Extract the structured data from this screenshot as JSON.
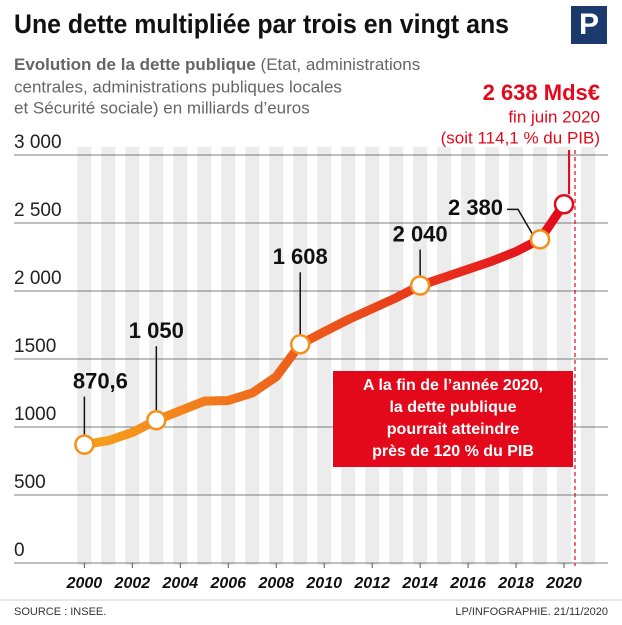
{
  "logo": "P",
  "chart_data": {
    "type": "line",
    "title": "Une dette multipliée par trois en vingt ans",
    "subtitle": {
      "lead": "Evolution de la dette publique",
      "lines": [
        "(Etat, administrations",
        "centrales, administrations publiques locales",
        "et Sécurité sociale) en milliards d’euros"
      ]
    },
    "x": [
      2000,
      2001,
      2002,
      2003,
      2004,
      2005,
      2006,
      2007,
      2008,
      2009,
      2010,
      2011,
      2012,
      2013,
      2014,
      2015,
      2016,
      2017,
      2018,
      2019,
      2020
    ],
    "values": [
      870.6,
      900,
      960,
      1050,
      1120,
      1190,
      1195,
      1250,
      1370,
      1608,
      1700,
      1790,
      1870,
      1950,
      2040,
      2100,
      2160,
      2220,
      2290,
      2380,
      2638
    ],
    "value_labels": [
      "870,6",
      null,
      null,
      "1 050",
      null,
      null,
      null,
      null,
      null,
      "1 608",
      null,
      null,
      null,
      null,
      "2 040",
      null,
      null,
      null,
      null,
      "2 380",
      "2 638 Mds€"
    ],
    "xlim": [
      1999.4,
      2021.5
    ],
    "xticks": [
      2000,
      2002,
      2004,
      2006,
      2008,
      2010,
      2012,
      2014,
      2016,
      2018,
      2020
    ],
    "ylim": [
      0,
      3000
    ],
    "yticks": [
      0,
      500,
      1000,
      1500,
      {
        "value": 2000,
        "label": "2 000"
      },
      {
        "value": 2500,
        "label": "2 500"
      },
      {
        "value": 3000,
        "label": "3 000"
      }
    ],
    "grid": true,
    "last_point_note": [
      "fin juin 2020",
      "(soit 114,1 % du PIB)"
    ],
    "annotation": [
      "A la fin de l’année 2020,",
      "la dette publique",
      "pourrait atteindre",
      "près de 120 % du PIB"
    ],
    "source": "SOURCE : INSEE.",
    "credit": "LP/INFOGRAPHIE.  21/11/2020"
  }
}
